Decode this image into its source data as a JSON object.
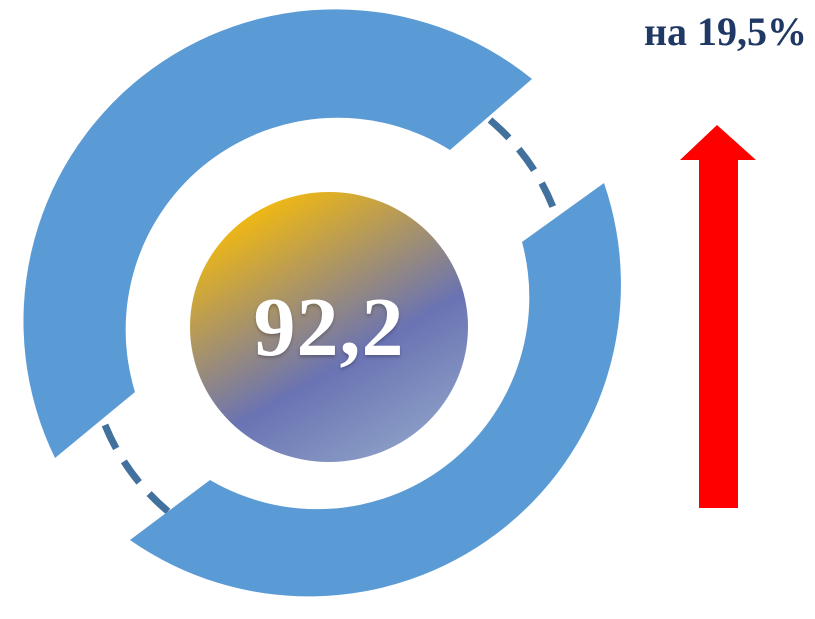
{
  "indicator": {
    "value": "92,2",
    "change_text": "на 19,5%",
    "trend": "up",
    "icons": {
      "trend": "up-arrow-icon",
      "ring": "ring-gauge-icon"
    },
    "colors": {
      "ring": "#5b9bd5",
      "dash": "#41719c",
      "arrow": "#ff0000",
      "change_text": "#203864",
      "value_text": "#ffffff",
      "circle_gradient": [
        "#ffc000",
        "#6a73b3",
        "#8fa3c8"
      ]
    }
  }
}
